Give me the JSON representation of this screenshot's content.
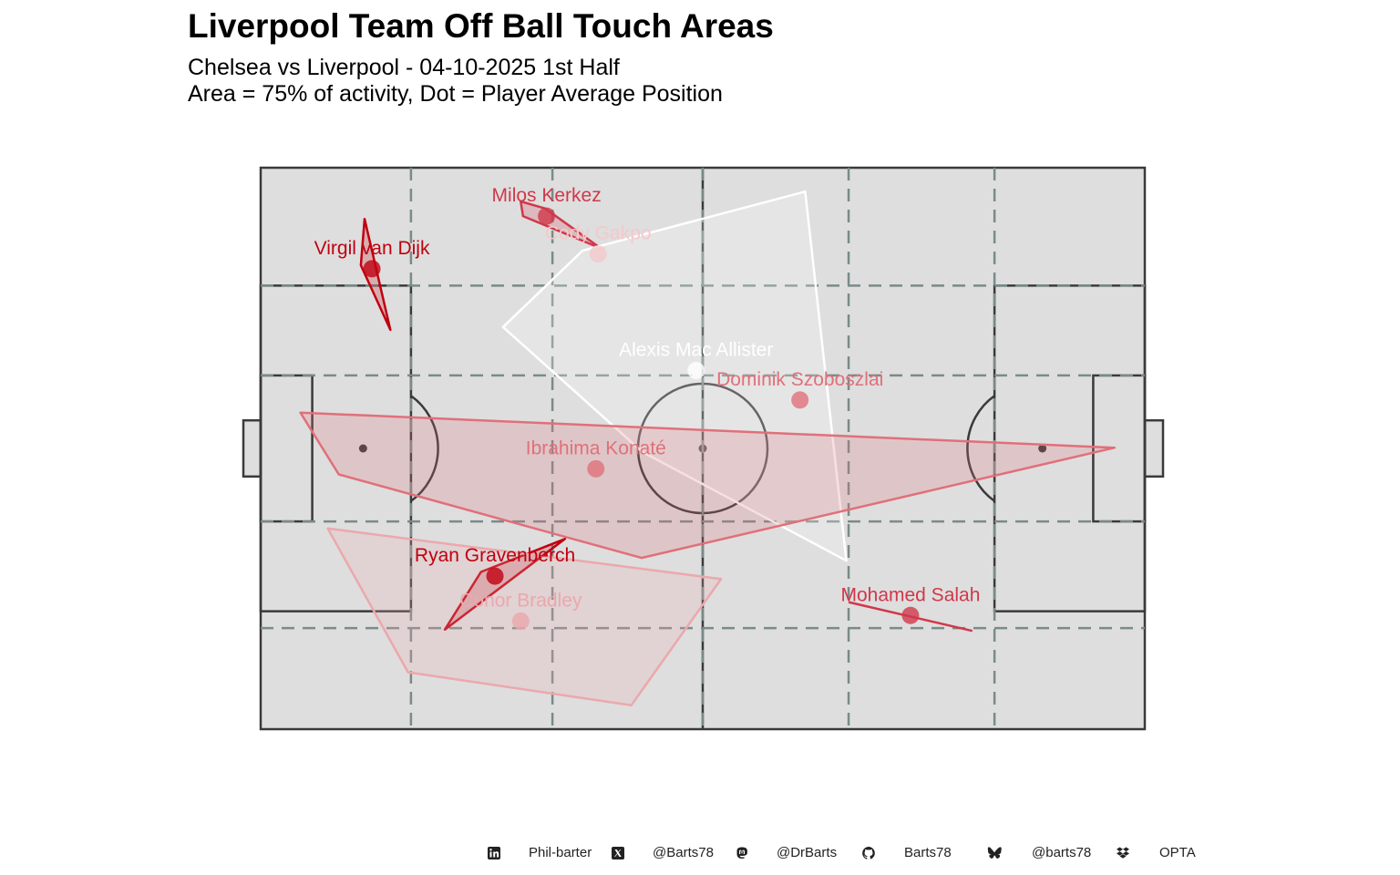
{
  "title": "Liverpool Team Off Ball Touch Areas",
  "subtitle_line1": "Chelsea vs Liverpool - 04-10-2025 1st Half",
  "subtitle_line2": "Area = 75% of activity, Dot = Player Average Position",
  "colors": {
    "pitch_fill": "#dedede",
    "pitch_line": "#3a3a3a",
    "zone_dash": "#7a8b88",
    "dark_red": "#c0000f",
    "red": "#d0384a",
    "mid_red": "#e0707a",
    "pink": "#eba8ad",
    "light_pink": "#f3c9cc",
    "white": "#ffffff"
  },
  "chart_data": {
    "type": "scatter",
    "x_range": [
      0,
      120
    ],
    "y_range": [
      0,
      80
    ],
    "zone_lines_x": [
      20.4,
      39.6,
      60.0,
      79.8,
      99.6
    ],
    "zone_lines_y": [
      14.4,
      29.6,
      50.4,
      63.2
    ],
    "players": [
      {
        "name": "Milos Kerkez",
        "x": 38.8,
        "y": 73.1,
        "color": "#d0384a",
        "label_color": "#d0384a",
        "area": [
          [
            35.3,
            75.2
          ],
          [
            35.6,
            73.1
          ],
          [
            46.2,
            68.5
          ],
          [
            38.6,
            74.2
          ]
        ]
      },
      {
        "name": "Cody Gakpo",
        "x": 45.8,
        "y": 67.7,
        "color": "#f3c9cc",
        "label_color": "#f3c9cc",
        "area": [
          [
            45.8,
            68.5
          ],
          [
            46.6,
            68.6
          ],
          [
            46.0,
            68.3
          ]
        ]
      },
      {
        "name": "Virgil van Dijk",
        "x": 15.1,
        "y": 65.6,
        "color": "#c0000f",
        "label_color": "#c0000f",
        "area": [
          [
            14.1,
            72.7
          ],
          [
            17.6,
            56.9
          ],
          [
            13.6,
            66.1
          ]
        ]
      },
      {
        "name": "Alexis Mac Allister",
        "x": 59.1,
        "y": 51.1,
        "color": "#ffffff",
        "label_color": "#ffffff",
        "area": [
          [
            73.9,
            76.6
          ],
          [
            79.5,
            24.0
          ],
          [
            51.8,
            39.5
          ],
          [
            32.9,
            57.3
          ],
          [
            43.7,
            68.2
          ]
        ]
      },
      {
        "name": "Dominik Szoboszlai",
        "x": 73.2,
        "y": 46.9,
        "color": "#e0707a",
        "label_color": "#e0707a",
        "area": []
      },
      {
        "name": "Ibrahima Konaté",
        "x": 45.5,
        "y": 37.1,
        "color": "#e0707a",
        "label_color": "#e0707a",
        "area": [
          [
            5.4,
            45.1
          ],
          [
            115.9,
            40.1
          ],
          [
            51.7,
            24.4
          ],
          [
            10.6,
            36.3
          ]
        ]
      },
      {
        "name": "Ryan Gravenberch",
        "x": 31.8,
        "y": 21.8,
        "color": "#c0000f",
        "label_color": "#c0000f",
        "area": [
          [
            41.3,
            27.1
          ],
          [
            29.9,
            22.4
          ],
          [
            25.0,
            14.2
          ]
        ]
      },
      {
        "name": "Conor Bradley",
        "x": 35.3,
        "y": 15.4,
        "color": "#eba8ad",
        "label_color": "#eba8ad",
        "area": [
          [
            9.1,
            28.6
          ],
          [
            62.5,
            21.4
          ],
          [
            50.3,
            3.4
          ],
          [
            20.0,
            8.1
          ]
        ]
      },
      {
        "name": "Mohamed Salah",
        "x": 88.2,
        "y": 16.2,
        "color": "#d0384a",
        "label_color": "#d0384a",
        "area": [
          [
            79.8,
            18.1
          ],
          [
            96.6,
            14.0
          ]
        ]
      }
    ]
  },
  "footer": {
    "linkedin_icon": "linkedin-icon",
    "linkedin": "Phil-barter",
    "x_icon": "x-icon",
    "x": "@Barts78",
    "mastodon_icon": "mastodon-icon",
    "mastodon": "@DrBarts",
    "github_icon": "github-icon",
    "github": "Barts78",
    "bluesky_icon": "bluesky-icon",
    "bluesky": "@barts78",
    "dropbox_icon": "dropbox-icon",
    "source": "OPTA"
  }
}
